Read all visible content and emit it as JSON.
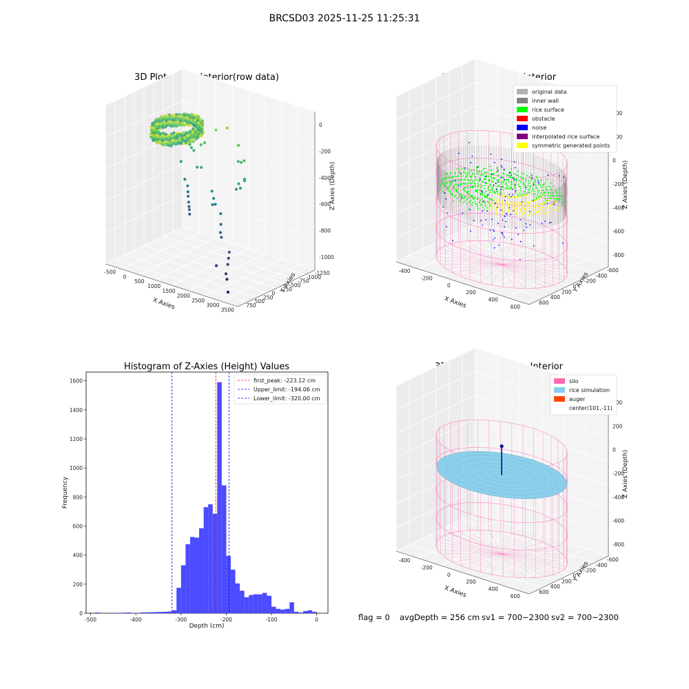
{
  "figure": {
    "suptitle": "BRCSD03 2025-11-25 11:25:31",
    "status": {
      "flag": "flag = 0",
      "avg_depth": "avgDepth = 256 cm",
      "sv1": "sv1 = 700~2300",
      "sv2": "sv2 = 700~2300"
    }
  },
  "chart_data": [
    {
      "type": "scatter",
      "projection": "3d",
      "title": "3D Plot of Silo Interior(row data)",
      "xlabel": "X Axies",
      "ylabel": "Y Axies",
      "zlabel": "Z Axies (Depth)",
      "xticks": [
        "-500",
        "0",
        "500",
        "1000",
        "1500",
        "2000",
        "2500",
        "3000",
        "3500"
      ],
      "yticks": [
        "750",
        "500",
        "250",
        "0",
        "-250",
        "-500",
        "-750",
        "-1000",
        "-1250"
      ],
      "zticks": [
        "0",
        "-200",
        "-400",
        "-600",
        "-800",
        "-1000"
      ],
      "xlim": [
        -600,
        3600
      ],
      "ylim": [
        -1300,
        850
      ],
      "zlim": [
        -1100,
        50
      ],
      "colormap": "viridis",
      "series": [
        {
          "points": [
            [
              2950,
              -1000,
              -1080
            ],
            [
              2860,
              -950,
              -1000
            ],
            [
              2840,
              -960,
              -960
            ],
            [
              2830,
              -900,
              -900
            ],
            [
              2820,
              -870,
              -860
            ],
            [
              2810,
              -840,
              -820
            ],
            [
              2500,
              -930,
              -930
            ],
            [
              2400,
              -700,
              -760
            ],
            [
              2300,
              -640,
              -740
            ],
            [
              2200,
              -540,
              -700
            ],
            [
              2100,
              -460,
              -640
            ],
            [
              1900,
              -430,
              -590
            ],
            [
              1800,
              -390,
              -560
            ],
            [
              1700,
              -350,
              -520
            ],
            [
              1750,
              -380,
              -610
            ],
            [
              2300,
              -200,
              -480
            ],
            [
              2400,
              -220,
              -430
            ],
            [
              2500,
              -260,
              -450
            ],
            [
              2600,
              -230,
              -380
            ],
            [
              2450,
              -100,
              -420
            ],
            [
              2300,
              20,
              -300
            ],
            [
              2150,
              70,
              -330
            ],
            [
              2000,
              120,
              -340
            ],
            [
              700,
              -150,
              -580
            ],
            [
              720,
              -160,
              -620
            ],
            [
              740,
              -170,
              -650
            ],
            [
              760,
              -175,
              -690
            ],
            [
              780,
              -180,
              -720
            ],
            [
              800,
              -190,
              -740
            ],
            [
              820,
              -200,
              -770
            ],
            [
              600,
              -140,
              -540
            ],
            [
              500,
              200,
              -380
            ],
            [
              400,
              220,
              -370
            ],
            [
              300,
              260,
              -360
            ],
            [
              200,
              240,
              -350
            ],
            [
              100,
              230,
              -330
            ],
            [
              0,
              260,
              -310
            ],
            [
              -100,
              270,
              -320
            ],
            [
              -200,
              300,
              -350
            ],
            [
              -300,
              280,
              -330
            ],
            [
              150,
              150,
              -480
            ],
            [
              700,
              80,
              -260
            ],
            [
              600,
              60,
              -250
            ],
            [
              850,
              90,
              -300
            ],
            [
              1000,
              60,
              -270
            ],
            [
              1200,
              200,
              -180
            ],
            [
              1500,
              250,
              -150
            ],
            [
              1800,
              300,
              -260
            ],
            [
              900,
              -60,
              -440
            ],
            [
              1100,
              -120,
              -420
            ]
          ]
        }
      ],
      "ring_surface": "dense ring of rice-surface points near z = -150 to -250"
    },
    {
      "type": "scatter",
      "projection": "3d",
      "title": "3D classify of Silo Interior",
      "xlabel": "X Axies",
      "ylabel": "Y Axies",
      "zlabel": "Z Axies (Depth)",
      "xticks": [
        "-400",
        "-200",
        "0",
        "200",
        "400",
        "600"
      ],
      "yticks": [
        "600",
        "400",
        "200",
        "0",
        "-200",
        "-400",
        "-600"
      ],
      "zticks": [
        "400",
        "200",
        "0",
        "-200",
        "-400",
        "-600",
        "-800"
      ],
      "xlim": [
        -500,
        700
      ],
      "ylim": [
        -650,
        650
      ],
      "zlim": [
        -900,
        450
      ],
      "legend_position": "top-right",
      "legend": [
        {
          "label": "original data",
          "color": "#b0b0b0"
        },
        {
          "label": "inner wall",
          "color": "#808080"
        },
        {
          "label": "rice surface",
          "color": "#00ff00"
        },
        {
          "label": "obstacle",
          "color": "#ff0000"
        },
        {
          "label": "noise",
          "color": "#0000ff"
        },
        {
          "label": "interpolated rice surface",
          "color": "#800080"
        },
        {
          "label": "symmetric generated points",
          "color": "#ffff00"
        }
      ],
      "silo": {
        "center": [
          101,
          -11
        ],
        "radius": 520,
        "z_top": 0,
        "z_bottom": -900,
        "color": "#ff69b4"
      }
    },
    {
      "type": "bar",
      "title": "Histogram of Z-Axies (Height) Values",
      "xlabel": "Depth (cm)",
      "ylabel": "Frequency",
      "xlim": [
        -510,
        25
      ],
      "ylim": [
        0,
        1660
      ],
      "xticks": [
        -500,
        -400,
        -300,
        -200,
        -100,
        0
      ],
      "yticks": [
        0,
        200,
        400,
        600,
        800,
        1000,
        1200,
        1400,
        1600
      ],
      "bar_color": "#4b4bff",
      "bins": [
        [
          -485,
          5
        ],
        [
          -445,
          3
        ],
        [
          -425,
          4
        ],
        [
          -415,
          5
        ],
        [
          -395,
          2
        ],
        [
          -385,
          6
        ],
        [
          -375,
          6
        ],
        [
          -365,
          7
        ],
        [
          -355,
          8
        ],
        [
          -345,
          9
        ],
        [
          -335,
          10
        ],
        [
          -325,
          12
        ],
        [
          -315,
          20
        ],
        [
          -305,
          175
        ],
        [
          -295,
          330
        ],
        [
          -285,
          475
        ],
        [
          -275,
          525
        ],
        [
          -265,
          520
        ],
        [
          -255,
          585
        ],
        [
          -245,
          730
        ],
        [
          -235,
          750
        ],
        [
          -225,
          685
        ],
        [
          -215,
          1590
        ],
        [
          -205,
          880
        ],
        [
          -195,
          395
        ],
        [
          -185,
          300
        ],
        [
          -175,
          205
        ],
        [
          -165,
          155
        ],
        [
          -155,
          110
        ],
        [
          -145,
          125
        ],
        [
          -135,
          130
        ],
        [
          -125,
          130
        ],
        [
          -115,
          140
        ],
        [
          -105,
          120
        ],
        [
          -95,
          45
        ],
        [
          -85,
          30
        ],
        [
          -75,
          25
        ],
        [
          -65,
          30
        ],
        [
          -55,
          75
        ],
        [
          -45,
          10
        ],
        [
          -35,
          5
        ],
        [
          -25,
          15
        ],
        [
          -15,
          20
        ],
        [
          -5,
          10
        ]
      ],
      "bin_width": 10,
      "vlines": [
        {
          "label": "first_peak: -223.12 cm",
          "x": -223.12,
          "color": "#ff0000"
        },
        {
          "label": "Upper_limit: -194.06 cm",
          "x": -194.06,
          "color": "#0000ff"
        },
        {
          "label": "Lower_limit: -320.00 cm",
          "x": -320.0,
          "color": "#0000ff"
        }
      ],
      "legend_position": "top-right"
    },
    {
      "type": "scatter",
      "projection": "3d",
      "title": "3D simulation of Silo Interior",
      "xlabel": "X Axies",
      "ylabel": "Y Axies",
      "zlabel": "Z Axies (Depth)",
      "xticks": [
        "-400",
        "-200",
        "0",
        "200",
        "400",
        "600"
      ],
      "yticks": [
        "600",
        "400",
        "200",
        "0",
        "-200",
        "-400",
        "-600"
      ],
      "zticks": [
        "400",
        "200",
        "0",
        "-200",
        "-400",
        "-600",
        "-800"
      ],
      "xlim": [
        -500,
        700
      ],
      "ylim": [
        -650,
        650
      ],
      "zlim": [
        -900,
        450
      ],
      "legend_position": "top-right",
      "legend": [
        {
          "label": "silo",
          "color": "#ff69b4"
        },
        {
          "label": "rice simulation",
          "color": "#87ceeb"
        },
        {
          "label": "auger",
          "color": "#ff4500"
        },
        {
          "label": "center(101,-11)",
          "color": ""
        }
      ],
      "silo": {
        "center": [
          101,
          -11
        ],
        "radius": 520,
        "z_top": 0,
        "z_bottom": -900,
        "color": "#ff69b4"
      },
      "rice_surface_depth": -256
    }
  ]
}
